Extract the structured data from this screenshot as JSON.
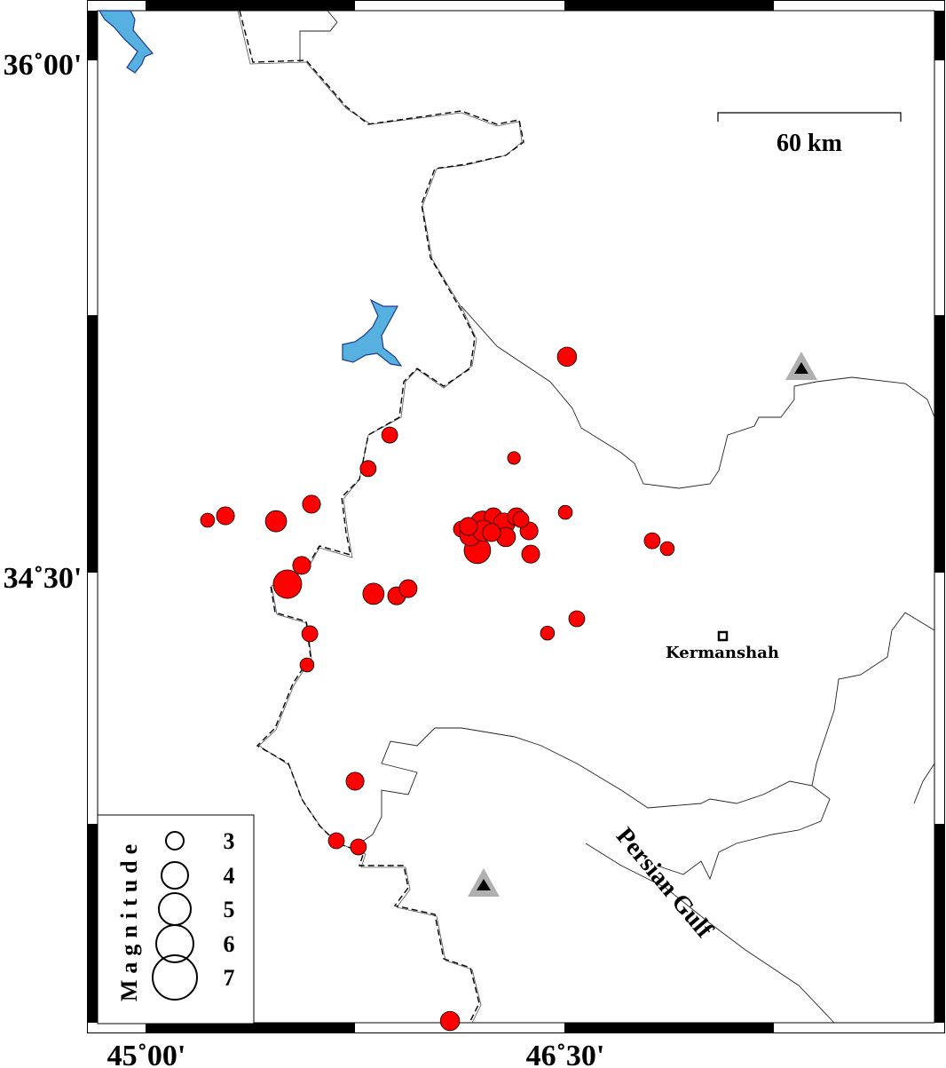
{
  "map": {
    "axes": {
      "lat_labels": [
        "36˚00'",
        "34˚30'"
      ],
      "lon_labels": [
        "45˚00'",
        "46˚30'"
      ]
    },
    "scale_bar": {
      "label": "60 km"
    },
    "places": {
      "city": "Kermanshah",
      "sea": "Persian Gulf"
    },
    "colors": {
      "event": "#ff0000",
      "lake": "#56b0e0",
      "lake_outline": "#1b3a8c",
      "station": "#000000",
      "station_halo": "#b0b0b0"
    },
    "legend": {
      "title": "Magnitude",
      "magnitudes": [
        "3",
        "4",
        "5",
        "6",
        "7"
      ]
    },
    "events": [
      {
        "lon": 46.506,
        "lat": 35.131,
        "mag": 3.2
      },
      {
        "lon": 45.871,
        "lat": 34.902,
        "mag": 2.7
      },
      {
        "lon": 45.794,
        "lat": 34.804,
        "mag": 2.7
      },
      {
        "lon": 46.316,
        "lat": 34.835,
        "mag": 2.2
      },
      {
        "lon": 45.591,
        "lat": 34.7,
        "mag": 3.0
      },
      {
        "lon": 45.283,
        "lat": 34.666,
        "mag": 3.0
      },
      {
        "lon": 45.219,
        "lat": 34.653,
        "mag": 2.4
      },
      {
        "lon": 45.464,
        "lat": 34.65,
        "mag": 3.5
      },
      {
        "lon": 46.5,
        "lat": 34.676,
        "mag": 2.4
      },
      {
        "lon": 46.811,
        "lat": 34.593,
        "mag": 2.7
      },
      {
        "lon": 46.865,
        "lat": 34.57,
        "mag": 2.4
      },
      {
        "lon": 45.556,
        "lat": 34.521,
        "mag": 3.0
      },
      {
        "lon": 45.505,
        "lat": 34.466,
        "mag": 4.6
      },
      {
        "lon": 45.813,
        "lat": 34.438,
        "mag": 3.5
      },
      {
        "lon": 45.896,
        "lat": 34.432,
        "mag": 3.0
      },
      {
        "lon": 45.937,
        "lat": 34.453,
        "mag": 3.0
      },
      {
        "lon": 45.585,
        "lat": 34.321,
        "mag": 2.7
      },
      {
        "lon": 46.436,
        "lat": 34.323,
        "mag": 2.4
      },
      {
        "lon": 46.541,
        "lat": 34.365,
        "mag": 2.7
      },
      {
        "lon": 45.575,
        "lat": 34.23,
        "mag": 2.4
      },
      {
        "lon": 45.747,
        "lat": 33.89,
        "mag": 3.0
      },
      {
        "lon": 45.68,
        "lat": 33.716,
        "mag": 2.7
      },
      {
        "lon": 45.759,
        "lat": 33.698,
        "mag": 2.7
      },
      {
        "lon": 46.087,
        "lat": 33.189,
        "mag": 3.2
      },
      {
        "lon": 46.376,
        "lat": 34.554,
        "mag": 3.0
      },
      {
        "lon": 46.185,
        "lat": 34.565,
        "mag": 4.3
      },
      {
        "lon": 46.128,
        "lat": 34.627,
        "mag": 2.7
      },
      {
        "lon": 46.16,
        "lat": 34.609,
        "mag": 3.5
      },
      {
        "lon": 46.204,
        "lat": 34.643,
        "mag": 4.1
      },
      {
        "lon": 46.242,
        "lat": 34.663,
        "mag": 3.0
      },
      {
        "lon": 46.281,
        "lat": 34.643,
        "mag": 3.5
      },
      {
        "lon": 46.325,
        "lat": 34.663,
        "mag": 3.0
      },
      {
        "lon": 46.37,
        "lat": 34.622,
        "mag": 3.0
      },
      {
        "lon": 46.287,
        "lat": 34.604,
        "mag": 3.2
      },
      {
        "lon": 46.207,
        "lat": 34.622,
        "mag": 3.5
      },
      {
        "lon": 46.153,
        "lat": 34.635,
        "mag": 3.0
      },
      {
        "lon": 46.341,
        "lat": 34.655,
        "mag": 2.7
      },
      {
        "lon": 46.236,
        "lat": 34.617,
        "mag": 3.0
      }
    ]
  }
}
